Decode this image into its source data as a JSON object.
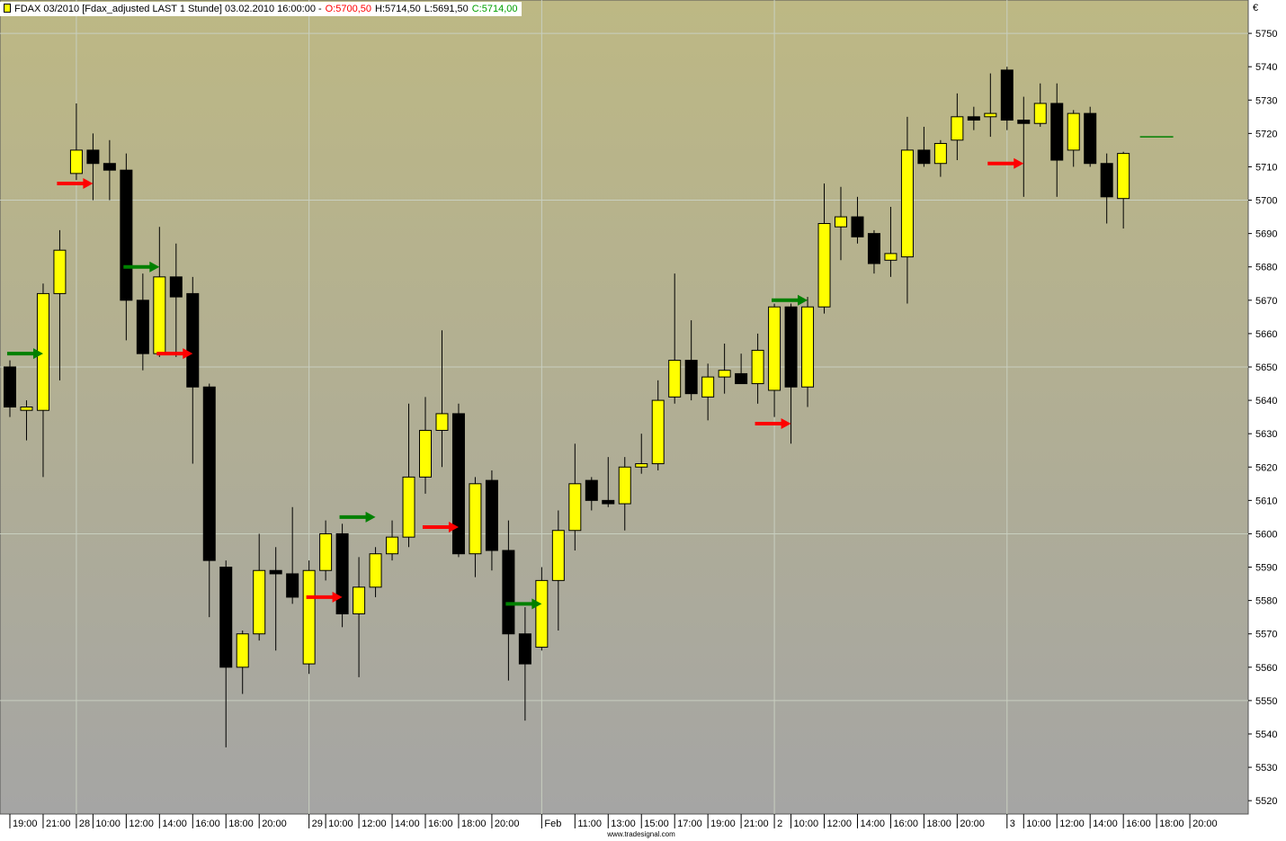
{
  "chart_data": {
    "type": "candlestick",
    "title": "FDAX 03/2010 [Fdax_adjusted LAST 1 Stunde] 03.02.2010 16:00:00 -",
    "header_values": [
      {
        "text": "O:5700,50",
        "color": "#ff0000"
      },
      {
        "text": "H:5714,50",
        "color": "#000000"
      },
      {
        "text": "L:5691,50",
        "color": "#000000"
      },
      {
        "text": "C:5714,00",
        "color": "#00a000"
      }
    ],
    "currency": "€",
    "credit": "www.tradesignal.com",
    "categories": [
      "19:00",
      null,
      "21:00",
      null,
      "28",
      "10:00",
      null,
      "12:00",
      null,
      "14:00",
      null,
      "16:00",
      null,
      "18:00",
      null,
      "20:00",
      null,
      null,
      "29",
      "10:00",
      null,
      "12:00",
      null,
      "14:00",
      null,
      "16:00",
      null,
      "18:00",
      null,
      "20:00",
      null,
      null,
      "Feb",
      null,
      "11:00",
      null,
      "13:00",
      null,
      "15:00",
      null,
      "17:00",
      null,
      "19:00",
      null,
      "21:00",
      null,
      "2",
      "10:00",
      null,
      "12:00",
      null,
      "14:00",
      null,
      "16:00",
      null,
      "18:00",
      null,
      "20:00",
      null,
      null,
      "3",
      "10:00",
      null,
      "12:00",
      null,
      "14:00",
      null,
      "16:00",
      null,
      "18:00",
      null,
      "20:00"
    ],
    "open": [
      5650,
      5637,
      5637,
      5672,
      5708,
      5715,
      5711,
      5709,
      5670,
      5654,
      5677,
      5672,
      5644,
      5590,
      5560,
      5570,
      5589,
      5588,
      5561,
      5589,
      5600,
      5576,
      5584,
      5594,
      5599,
      5617,
      5631,
      5636,
      5594,
      5616,
      5595,
      5570,
      5566,
      5586,
      5601,
      5616,
      5610,
      5609,
      5620,
      5621,
      5641,
      5652,
      5641,
      5647,
      5648,
      5645,
      5643,
      5668,
      5644,
      5668,
      5692,
      5695,
      5690,
      5682,
      5683,
      5715,
      5711,
      5718,
      5725,
      5725,
      5739,
      5724,
      5723,
      5729,
      5715,
      5726,
      5711,
      5700.5,
      null,
      null,
      null,
      null
    ],
    "high": [
      5652,
      5640,
      5675,
      5691,
      5729,
      5720,
      5718,
      5714,
      5678,
      5692,
      5687,
      5677,
      5645,
      5592,
      5571,
      5600,
      5596,
      5608,
      5592,
      5604,
      5603,
      5593,
      5596,
      5604,
      5639,
      5641,
      5661,
      5639,
      5617,
      5619,
      5604,
      5578,
      5590,
      5607,
      5627,
      5617,
      5623,
      5623,
      5630,
      5646,
      5678,
      5664,
      5651,
      5657,
      5654,
      5660,
      5669,
      5669,
      5671,
      5705,
      5704,
      5701,
      5691,
      5698,
      5725,
      5722,
      5718,
      5732,
      5728,
      5738,
      5740,
      5731,
      5735,
      5735,
      5727,
      5728,
      5714,
      5714.5,
      null,
      null,
      null,
      null
    ],
    "low": [
      5635,
      5628,
      5617,
      5646,
      5706,
      5700,
      5700,
      5658,
      5649,
      5653,
      5653,
      5621,
      5575,
      5536,
      5552,
      5568,
      5565,
      5579,
      5558,
      5586,
      5572,
      5557,
      5581,
      5592,
      5596,
      5612,
      5620,
      5593,
      5587,
      5589,
      5556,
      5544,
      5565,
      5571,
      5595,
      5607,
      5608,
      5601,
      5618,
      5619,
      5639,
      5640,
      5634,
      5642,
      5645,
      5639,
      5635,
      5627,
      5638,
      5666,
      5682,
      5687,
      5678,
      5677,
      5669,
      5710,
      5707,
      5712,
      5721,
      5719,
      5721,
      5701,
      5722,
      5701,
      5710,
      5710,
      5693,
      5691.5,
      null,
      null,
      null,
      null
    ],
    "close": [
      5638,
      5638,
      5672,
      5685,
      5715,
      5711,
      5709,
      5670,
      5654,
      5677,
      5671,
      5644,
      5592,
      5560,
      5570,
      5589,
      5588,
      5581,
      5589,
      5600,
      5576,
      5584,
      5594,
      5599,
      5617,
      5631,
      5636,
      5594,
      5615,
      5595,
      5570,
      5561,
      5586,
      5601,
      5615,
      5610,
      5609,
      5620,
      5621,
      5640,
      5652,
      5642,
      5647,
      5649,
      5645,
      5655,
      5668,
      5644,
      5668,
      5693,
      5695,
      5689,
      5681,
      5684,
      5715,
      5711,
      5717,
      5725,
      5724,
      5726,
      5724,
      5723,
      5729,
      5712,
      5726,
      5711,
      5701,
      5714,
      null,
      null,
      null,
      null
    ],
    "up_color": "#ffff00",
    "down_color": "#000000",
    "buy_signals": {
      "color": "#008000",
      "values": [
        null,
        null,
        5654,
        null,
        null,
        null,
        null,
        null,
        null,
        5680,
        null,
        null,
        null,
        null,
        null,
        null,
        null,
        null,
        null,
        null,
        null,
        null,
        5605,
        null,
        null,
        null,
        null,
        null,
        null,
        null,
        null,
        null,
        5579,
        null,
        null,
        null,
        null,
        null,
        null,
        null,
        null,
        null,
        null,
        null,
        null,
        null,
        null,
        null,
        5670,
        null,
        null,
        null,
        null,
        null,
        null,
        null,
        null,
        null,
        null,
        null,
        null,
        null,
        null,
        null,
        null,
        null,
        null,
        null,
        null,
        null,
        null,
        null
      ]
    },
    "sell_signals": {
      "color": "#ff0000",
      "values": [
        null,
        null,
        null,
        null,
        null,
        5705,
        null,
        null,
        null,
        null,
        null,
        5654,
        null,
        null,
        null,
        null,
        null,
        null,
        null,
        null,
        5581,
        null,
        null,
        null,
        null,
        null,
        null,
        5602,
        null,
        null,
        null,
        null,
        null,
        null,
        null,
        null,
        null,
        null,
        null,
        null,
        null,
        null,
        null,
        null,
        null,
        null,
        null,
        5633,
        null,
        null,
        null,
        null,
        null,
        null,
        null,
        null,
        null,
        null,
        null,
        null,
        null,
        5711,
        null,
        null,
        null,
        null,
        null,
        null,
        null,
        null,
        null,
        null
      ]
    },
    "forecast": {
      "color": "#008000",
      "values": [
        null,
        null,
        null,
        null,
        null,
        null,
        null,
        null,
        null,
        null,
        null,
        null,
        null,
        null,
        null,
        null,
        null,
        null,
        null,
        null,
        null,
        null,
        null,
        null,
        null,
        null,
        null,
        null,
        null,
        null,
        null,
        null,
        null,
        null,
        null,
        null,
        null,
        null,
        null,
        null,
        null,
        null,
        null,
        null,
        null,
        null,
        null,
        null,
        null,
        null,
        null,
        null,
        null,
        null,
        null,
        null,
        null,
        null,
        null,
        null,
        null,
        null,
        null,
        null,
        null,
        null,
        null,
        null,
        5719,
        5719,
        5719,
        null
      ]
    },
    "ylim": [
      5516,
      5760
    ],
    "yticks": [
      5520,
      5530,
      5540,
      5550,
      5560,
      5570,
      5580,
      5590,
      5600,
      5610,
      5620,
      5630,
      5640,
      5650,
      5660,
      5670,
      5680,
      5690,
      5700,
      5710,
      5720,
      5730,
      5740,
      5750
    ],
    "grid": true
  }
}
